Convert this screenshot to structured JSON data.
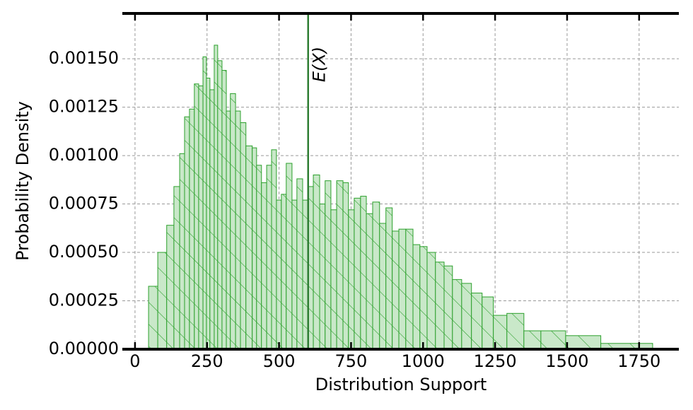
{
  "chart_data": {
    "type": "histogram",
    "xlabel": "Distribution Support",
    "ylabel": "Probability Density",
    "bins": [
      47,
      79,
      110,
      135,
      155,
      172,
      189,
      206,
      221,
      236,
      248,
      260,
      275,
      287,
      302,
      317,
      331,
      349,
      366,
      385,
      407,
      422,
      439,
      457,
      474,
      491,
      508,
      525,
      545,
      562,
      582,
      601,
      619,
      641,
      660,
      680,
      700,
      722,
      741,
      761,
      783,
      803,
      825,
      849,
      871,
      893,
      916,
      940,
      965,
      989,
      1014,
      1043,
      1073,
      1102,
      1134,
      1168,
      1205,
      1244,
      1291,
      1350,
      1409,
      1495,
      1617,
      1797
    ],
    "values": [
      0.000325,
      0.0005,
      0.00064,
      0.00084,
      0.00101,
      0.0012,
      0.00124,
      0.00137,
      0.00136,
      0.00151,
      0.0014,
      0.00134,
      0.00157,
      0.00149,
      0.00144,
      0.00123,
      0.00132,
      0.00123,
      0.00117,
      0.00105,
      0.00104,
      0.00095,
      0.00086,
      0.00095,
      0.00103,
      0.00077,
      0.0008,
      0.00096,
      0.00077,
      0.00088,
      0.00077,
      0.00084,
      0.0009,
      0.00075,
      0.00087,
      0.00072,
      0.00087,
      0.00086,
      0.00072,
      0.00078,
      0.00079,
      0.0007,
      0.00076,
      0.00065,
      0.00073,
      0.00061,
      0.00062,
      0.00062,
      0.00054,
      0.00053,
      0.0005,
      0.00045,
      0.00043,
      0.00036,
      0.00034,
      0.00029,
      0.00027,
      0.000175,
      0.000185,
      9.5e-05,
      9.5e-05,
      7e-05,
      3e-05
    ],
    "color": "#c9e8c9",
    "edgecolor": "#2ca02c",
    "hatch": true,
    "vline": {
      "value": 601,
      "label": "E(X)",
      "color": "#2e7d32"
    },
    "xlim": [
      -44,
      1888
    ],
    "ylim": [
      0,
      0.001734
    ],
    "xticks": [
      0,
      250,
      500,
      750,
      1000,
      1250,
      1500,
      1750
    ],
    "yticks": [
      {
        "value": 0,
        "label": "0.00000"
      },
      {
        "value": 0.00025,
        "label": "0.00025"
      },
      {
        "value": 0.0005,
        "label": "0.00050"
      },
      {
        "value": 0.00075,
        "label": "0.00075"
      },
      {
        "value": 0.001,
        "label": "0.00100"
      },
      {
        "value": 0.00125,
        "label": "0.00125"
      },
      {
        "value": 0.0015,
        "label": "0.00150"
      }
    ],
    "grid": true
  }
}
